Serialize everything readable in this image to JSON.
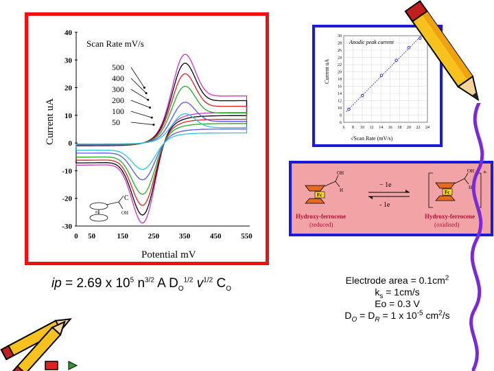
{
  "colors": {
    "cv_frame": "#ee1111",
    "inset_frame": "#1a1ad8",
    "reaction_bg": "#f1a3a6"
  },
  "chart_data": [
    {
      "type": "line",
      "title": "Scan Rate mV/s",
      "xlabel": "Potential mV",
      "ylabel": "Current uA",
      "xlim": [
        0,
        560
      ],
      "ylim": [
        -30,
        40
      ],
      "xticks": [
        0,
        50,
        150,
        250,
        350,
        450,
        550
      ],
      "yticks": [
        40,
        30,
        20,
        10,
        0,
        -10,
        -20,
        -30
      ],
      "series": [
        {
          "name": "500",
          "color": "#cc33cc",
          "scale": 1.0
        },
        {
          "name": "400",
          "color": "#000000",
          "scale": 0.9
        },
        {
          "name": "300",
          "color": "#dd2222",
          "scale": 0.78
        },
        {
          "name": "200",
          "color": "#22aa22",
          "scale": 0.64
        },
        {
          "name": "100",
          "color": "#5555ee",
          "scale": 0.46
        },
        {
          "name": "50",
          "color": "#22c8d8",
          "scale": 0.33
        }
      ],
      "legend": "top-left",
      "anodic_peak_x": 350,
      "cathodic_peak_x": 215
    },
    {
      "type": "scatter",
      "title": "Anodic peak current",
      "xlabel": "√Scan Rate (mV/s)",
      "ylabel": "Current uA",
      "xlim": [
        6,
        24
      ],
      "ylim": [
        6,
        30
      ],
      "xticks": [
        6,
        8,
        10,
        12,
        14,
        16,
        18,
        20,
        22,
        24
      ],
      "yticks": [
        6,
        8,
        10,
        12,
        14,
        16,
        18,
        20,
        22,
        24,
        26,
        28,
        30
      ],
      "x": [
        7.1,
        10,
        14.1,
        17.3,
        20,
        22.4
      ],
      "y": [
        9.6,
        13.4,
        19.0,
        23.2,
        26.7,
        29.3
      ],
      "fit_line": true
    }
  ],
  "reaction": {
    "left_label": "Hydroxy-ferrocene",
    "left_state": "(reduced)",
    "right_label": "Hydroxy-ferrocene",
    "right_state": "(oxidised)",
    "forward": "− 1e",
    "backward": "- 1e",
    "charge": "+",
    "fc": "Fc",
    "oh": "OH",
    "h": "H"
  },
  "molecule": {
    "c": "C",
    "oh": "OH",
    "fc": "Fc"
  },
  "equation": {
    "ip": "ip",
    "eq": " = 2.69 x 10",
    "exp5": "5",
    "n": " n",
    "exp32": "3/2",
    "a": " A D",
    "subO1": "O",
    "exp12a": "1/2",
    "v": " v",
    "exp12b": "1/2",
    "c": " C",
    "subO2": "O"
  },
  "parameters": {
    "area_text": "Electrode area = 0.1cm",
    "area_sup": "2",
    "ks_k": "k",
    "ks_sub": "s",
    "ks_rest": " = 1cm/s",
    "eo": "Eo = 0.3 V",
    "d_a": "D",
    "d_sub1": "O",
    "d_b": " = D",
    "d_sub2": "R",
    "d_c": " = 1 x 10",
    "d_sup1": "-5",
    "d_d": " cm",
    "d_sup2": "2",
    "d_e": "/s"
  }
}
